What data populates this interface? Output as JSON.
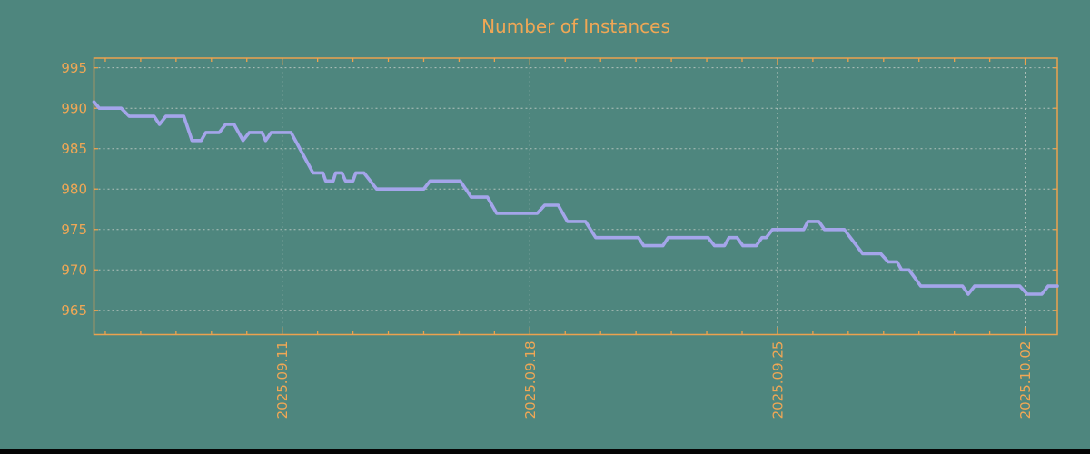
{
  "chart_data": {
    "type": "line",
    "title": "Number of Instances",
    "legend": "none",
    "grid": "dashed",
    "colors": {
      "background": "#4e867e",
      "axis_and_text": "#eca24e",
      "title_text": "#f0a755",
      "grid_lines": "#b2c2bc",
      "series_line": "#a4a5ea",
      "bottom_edge_bar": "#050505"
    },
    "x_unit": "days (2025.09.11 = day 6, weekly labeled ticks, daily minor ticks)",
    "xlim": [
      0.68,
      27.91
    ],
    "ylim": [
      962.0,
      996.2
    ],
    "y_ticks": [
      {
        "v": 965,
        "label": "965"
      },
      {
        "v": 970,
        "label": "970"
      },
      {
        "v": 975,
        "label": "975"
      },
      {
        "v": 980,
        "label": "980"
      },
      {
        "v": 985,
        "label": "985"
      },
      {
        "v": 990,
        "label": "990"
      },
      {
        "v": 995,
        "label": "995"
      }
    ],
    "x_ticks_major": [
      {
        "x": 6,
        "label": "2025.09.11"
      },
      {
        "x": 13,
        "label": "2025.09.18"
      },
      {
        "x": 20,
        "label": "2025.09.25"
      },
      {
        "x": 27,
        "label": "2025.10.02"
      }
    ],
    "x_ticks_minor": [
      1,
      2,
      3,
      4,
      5,
      7,
      8,
      9,
      10,
      11,
      12,
      14,
      15,
      16,
      17,
      18,
      19,
      21,
      22,
      23,
      24,
      25,
      26
    ],
    "series": [
      {
        "name": "instances",
        "points": [
          [
            0.68,
            990.8
          ],
          [
            0.83,
            990
          ],
          [
            1.45,
            990
          ],
          [
            1.68,
            989
          ],
          [
            2.38,
            989
          ],
          [
            2.53,
            988
          ],
          [
            2.71,
            989
          ],
          [
            3.22,
            989
          ],
          [
            3.45,
            986
          ],
          [
            3.71,
            986
          ],
          [
            3.84,
            987
          ],
          [
            4.22,
            987
          ],
          [
            4.4,
            988
          ],
          [
            4.64,
            988
          ],
          [
            4.89,
            986
          ],
          [
            5.07,
            987
          ],
          [
            5.43,
            987
          ],
          [
            5.53,
            986
          ],
          [
            5.69,
            987
          ],
          [
            6.25,
            987
          ],
          [
            6.87,
            982
          ],
          [
            7.15,
            982
          ],
          [
            7.23,
            981
          ],
          [
            7.44,
            981
          ],
          [
            7.51,
            982
          ],
          [
            7.69,
            982
          ],
          [
            7.79,
            981
          ],
          [
            8.0,
            981
          ],
          [
            8.08,
            982
          ],
          [
            8.31,
            982
          ],
          [
            8.67,
            980
          ],
          [
            10.0,
            980
          ],
          [
            10.18,
            981
          ],
          [
            11.03,
            981
          ],
          [
            11.34,
            979
          ],
          [
            11.8,
            979
          ],
          [
            12.06,
            977
          ],
          [
            13.21,
            977
          ],
          [
            13.42,
            978
          ],
          [
            13.8,
            978
          ],
          [
            14.06,
            976
          ],
          [
            14.57,
            976
          ],
          [
            14.86,
            974
          ],
          [
            16.07,
            974
          ],
          [
            16.22,
            973
          ],
          [
            16.76,
            973
          ],
          [
            16.91,
            974
          ],
          [
            18.04,
            974
          ],
          [
            18.22,
            973
          ],
          [
            18.5,
            973
          ],
          [
            18.63,
            974
          ],
          [
            18.86,
            974
          ],
          [
            19.02,
            973
          ],
          [
            19.4,
            973
          ],
          [
            19.56,
            974
          ],
          [
            19.68,
            974
          ],
          [
            19.86,
            975
          ],
          [
            20.74,
            975
          ],
          [
            20.86,
            976
          ],
          [
            21.17,
            976
          ],
          [
            21.33,
            975
          ],
          [
            21.89,
            975
          ],
          [
            22.41,
            972
          ],
          [
            22.92,
            972
          ],
          [
            23.13,
            971
          ],
          [
            23.38,
            971
          ],
          [
            23.51,
            970
          ],
          [
            23.72,
            970
          ],
          [
            24.05,
            968
          ],
          [
            25.23,
            968
          ],
          [
            25.39,
            967
          ],
          [
            25.57,
            968
          ],
          [
            26.85,
            968
          ],
          [
            27.06,
            967
          ],
          [
            27.47,
            967
          ],
          [
            27.65,
            968
          ],
          [
            27.91,
            968
          ]
        ]
      }
    ]
  }
}
